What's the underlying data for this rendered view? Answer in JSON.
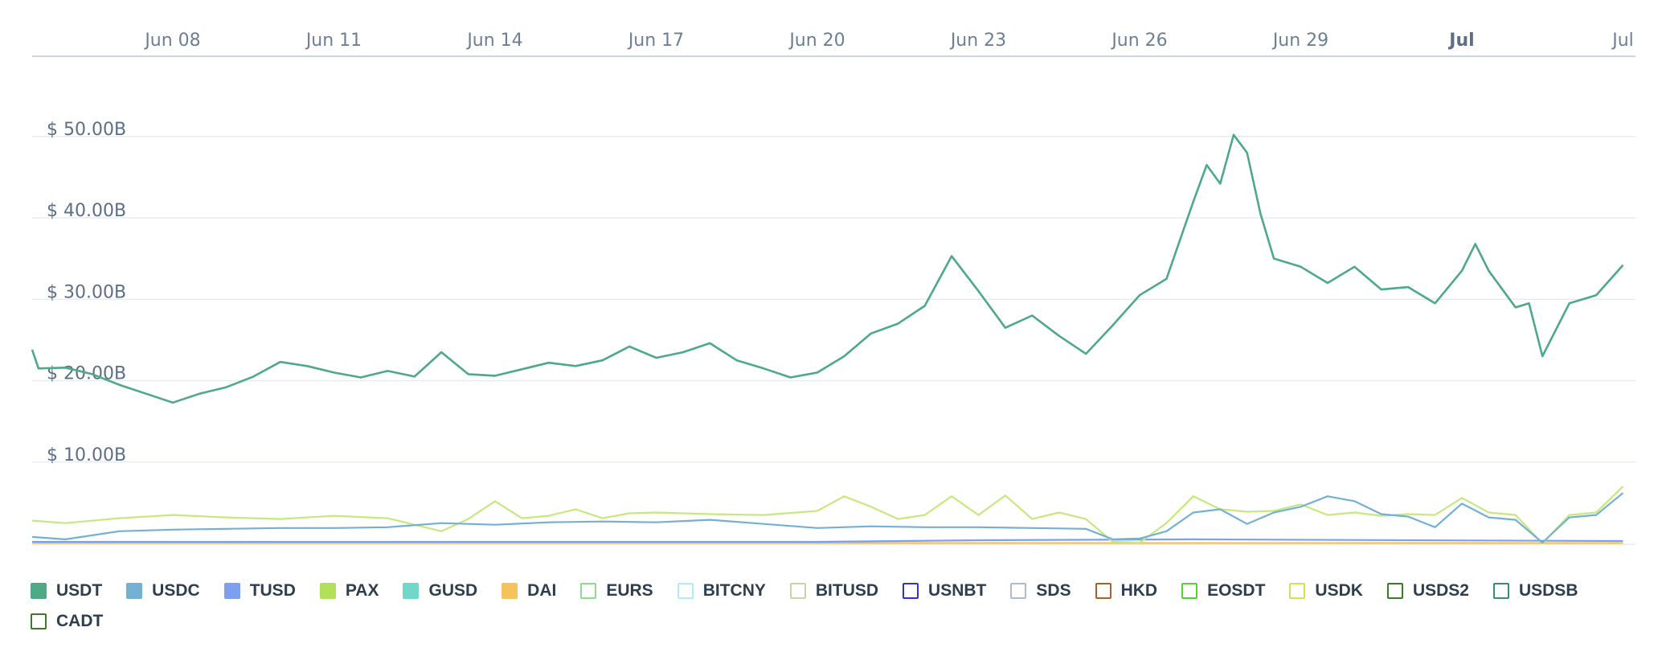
{
  "chart_data": {
    "type": "line",
    "title": "",
    "xlabel": "",
    "ylabel": "",
    "x_start": "2019-06-05",
    "x_end": "2019-07-05",
    "x_ticks": [
      {
        "label": "Jun 08",
        "date": "2019-06-08",
        "bold": false
      },
      {
        "label": "Jun 11",
        "date": "2019-06-11",
        "bold": false
      },
      {
        "label": "Jun 14",
        "date": "2019-06-14",
        "bold": false
      },
      {
        "label": "Jun 17",
        "date": "2019-06-17",
        "bold": false
      },
      {
        "label": "Jun 20",
        "date": "2019-06-20",
        "bold": false
      },
      {
        "label": "Jun 23",
        "date": "2019-06-23",
        "bold": false
      },
      {
        "label": "Jun 26",
        "date": "2019-06-26",
        "bold": false
      },
      {
        "label": "Jun 29",
        "date": "2019-06-29",
        "bold": false
      },
      {
        "label": "Jul",
        "date": "2019-07-02",
        "bold": true
      },
      {
        "label": "Jul",
        "date": "2019-07-05",
        "bold": false
      }
    ],
    "y_ticks": [
      {
        "label": "$ 10.00B",
        "value": 10
      },
      {
        "label": "$ 20.00B",
        "value": 20
      },
      {
        "label": "$ 30.00B",
        "value": 30
      },
      {
        "label": "$ 40.00B",
        "value": 40
      },
      {
        "label": "$ 50.00B",
        "value": 50
      }
    ],
    "ylim": [
      0,
      60
    ],
    "y_unit": "$ billions",
    "grid": true,
    "legend_position": "bottom",
    "series": [
      {
        "name": "USDT",
        "color": "#4ea987",
        "points": [
          [
            "2019-06-05",
            23.8
          ],
          [
            "2019-06-05T12:00",
            21.5
          ],
          [
            "2019-06-06",
            21.6
          ],
          [
            "2019-06-06T12:00",
            20.8
          ],
          [
            "2019-06-07",
            19.5
          ],
          [
            "2019-06-07T12:00",
            18.4
          ],
          [
            "2019-06-08",
            17.3
          ],
          [
            "2019-06-08T12:00",
            18.4
          ],
          [
            "2019-06-09",
            19.2
          ],
          [
            "2019-06-09T12:00",
            20.5
          ],
          [
            "2019-06-10",
            22.3
          ],
          [
            "2019-06-10T12:00",
            21.8
          ],
          [
            "2019-06-11",
            21.0
          ],
          [
            "2019-06-11T12:00",
            20.4
          ],
          [
            "2019-06-12",
            21.2
          ],
          [
            "2019-06-12T12:00",
            20.5
          ],
          [
            "2019-06-13",
            23.5
          ],
          [
            "2019-06-13T12:00",
            20.8
          ],
          [
            "2019-06-14",
            20.6
          ],
          [
            "2019-06-14T12:00",
            21.4
          ],
          [
            "2019-06-15",
            22.2
          ],
          [
            "2019-06-15T12:00",
            21.8
          ],
          [
            "2019-06-16",
            22.5
          ],
          [
            "2019-06-16T12:00",
            24.2
          ],
          [
            "2019-06-17",
            22.8
          ],
          [
            "2019-06-17T12:00",
            23.5
          ],
          [
            "2019-06-18",
            24.6
          ],
          [
            "2019-06-18T12:00",
            22.5
          ],
          [
            "2019-06-19",
            21.5
          ],
          [
            "2019-06-19T12:00",
            20.4
          ],
          [
            "2019-06-20",
            21.0
          ],
          [
            "2019-06-20T12:00",
            23.0
          ],
          [
            "2019-06-21",
            25.8
          ],
          [
            "2019-06-21T12:00",
            27.0
          ],
          [
            "2019-06-22",
            29.2
          ],
          [
            "2019-06-22T12:00",
            35.3
          ],
          [
            "2019-06-23",
            31.0
          ],
          [
            "2019-06-23T12:00",
            26.5
          ],
          [
            "2019-06-24",
            28.0
          ],
          [
            "2019-06-24T12:00",
            25.5
          ],
          [
            "2019-06-25",
            23.3
          ],
          [
            "2019-06-25T12:00",
            26.8
          ],
          [
            "2019-06-26",
            30.5
          ],
          [
            "2019-06-26T12:00",
            32.5
          ],
          [
            "2019-06-27",
            42.0
          ],
          [
            "2019-06-27T06:00",
            46.5
          ],
          [
            "2019-06-27T12:00",
            44.2
          ],
          [
            "2019-06-27T18:00",
            50.2
          ],
          [
            "2019-06-28",
            48.0
          ],
          [
            "2019-06-28T06:00",
            40.5
          ],
          [
            "2019-06-28T12:00",
            35.0
          ],
          [
            "2019-06-29",
            34.0
          ],
          [
            "2019-06-29T12:00",
            32.0
          ],
          [
            "2019-06-30",
            34.0
          ],
          [
            "2019-06-30T12:00",
            31.2
          ],
          [
            "2019-07-01",
            31.5
          ],
          [
            "2019-07-01T12:00",
            29.5
          ],
          [
            "2019-07-02",
            33.5
          ],
          [
            "2019-07-02T06:00",
            36.8
          ],
          [
            "2019-07-02T12:00",
            33.5
          ],
          [
            "2019-07-03",
            29.0
          ],
          [
            "2019-07-03T06:00",
            29.5
          ],
          [
            "2019-07-03T12:00",
            23.0
          ],
          [
            "2019-07-04",
            29.5
          ],
          [
            "2019-07-04T12:00",
            30.5
          ],
          [
            "2019-07-05",
            34.2
          ]
        ]
      },
      {
        "name": "USDC",
        "color": "#74b0d4",
        "points": [
          [
            "2019-06-05",
            0.8
          ],
          [
            "2019-06-06",
            0.5
          ],
          [
            "2019-06-07",
            1.5
          ],
          [
            "2019-06-08",
            1.7
          ],
          [
            "2019-06-09",
            1.8
          ],
          [
            "2019-06-10",
            1.9
          ],
          [
            "2019-06-11",
            1.9
          ],
          [
            "2019-06-12",
            2.0
          ],
          [
            "2019-06-13",
            2.5
          ],
          [
            "2019-06-14",
            2.3
          ],
          [
            "2019-06-15",
            2.6
          ],
          [
            "2019-06-16",
            2.7
          ],
          [
            "2019-06-17",
            2.6
          ],
          [
            "2019-06-18",
            2.9
          ],
          [
            "2019-06-19",
            2.4
          ],
          [
            "2019-06-20",
            1.9
          ],
          [
            "2019-06-21",
            2.1
          ],
          [
            "2019-06-22",
            2.0
          ],
          [
            "2019-06-23",
            2.0
          ],
          [
            "2019-06-24",
            1.9
          ],
          [
            "2019-06-25",
            1.8
          ],
          [
            "2019-06-25T12:00",
            0.5
          ],
          [
            "2019-06-26",
            0.6
          ],
          [
            "2019-06-26T12:00",
            1.5
          ],
          [
            "2019-06-27",
            3.8
          ],
          [
            "2019-06-27T12:00",
            4.2
          ],
          [
            "2019-06-28",
            2.4
          ],
          [
            "2019-06-28T12:00",
            3.8
          ],
          [
            "2019-06-29",
            4.5
          ],
          [
            "2019-06-29T12:00",
            5.8
          ],
          [
            "2019-06-30",
            5.2
          ],
          [
            "2019-06-30T12:00",
            3.6
          ],
          [
            "2019-07-01",
            3.3
          ],
          [
            "2019-07-01T12:00",
            2.0
          ],
          [
            "2019-07-02",
            4.9
          ],
          [
            "2019-07-02T12:00",
            3.2
          ],
          [
            "2019-07-03",
            2.9
          ],
          [
            "2019-07-03T12:00",
            0.1
          ],
          [
            "2019-07-04",
            3.2
          ],
          [
            "2019-07-04T12:00",
            3.5
          ],
          [
            "2019-07-05",
            6.2
          ]
        ]
      },
      {
        "name": "PAX",
        "color": "#c7e87e",
        "points": [
          [
            "2019-06-05",
            2.8
          ],
          [
            "2019-06-06",
            2.5
          ],
          [
            "2019-06-07",
            3.1
          ],
          [
            "2019-06-08",
            3.5
          ],
          [
            "2019-06-09",
            3.2
          ],
          [
            "2019-06-10",
            3.0
          ],
          [
            "2019-06-11",
            3.4
          ],
          [
            "2019-06-12",
            3.1
          ],
          [
            "2019-06-13",
            1.5
          ],
          [
            "2019-06-13T12:00",
            3.0
          ],
          [
            "2019-06-14",
            5.2
          ],
          [
            "2019-06-14T12:00",
            3.1
          ],
          [
            "2019-06-15",
            3.4
          ],
          [
            "2019-06-15T12:00",
            4.2
          ],
          [
            "2019-06-16",
            3.1
          ],
          [
            "2019-06-16T12:00",
            3.7
          ],
          [
            "2019-06-17",
            3.8
          ],
          [
            "2019-06-18",
            3.6
          ],
          [
            "2019-06-19",
            3.5
          ],
          [
            "2019-06-20",
            4.0
          ],
          [
            "2019-06-20T12:00",
            5.8
          ],
          [
            "2019-06-21",
            4.5
          ],
          [
            "2019-06-21T12:00",
            3.0
          ],
          [
            "2019-06-22",
            3.5
          ],
          [
            "2019-06-22T12:00",
            5.8
          ],
          [
            "2019-06-23",
            3.5
          ],
          [
            "2019-06-23T12:00",
            5.9
          ],
          [
            "2019-06-24",
            3.0
          ],
          [
            "2019-06-24T12:00",
            3.8
          ],
          [
            "2019-06-25",
            3.0
          ],
          [
            "2019-06-25T12:00",
            0.2
          ],
          [
            "2019-06-26",
            0.1
          ],
          [
            "2019-06-26T12:00",
            2.5
          ],
          [
            "2019-06-27",
            5.8
          ],
          [
            "2019-06-27T12:00",
            4.2
          ],
          [
            "2019-06-28",
            3.9
          ],
          [
            "2019-06-28T12:00",
            4.0
          ],
          [
            "2019-06-29",
            4.8
          ],
          [
            "2019-06-29T12:00",
            3.5
          ],
          [
            "2019-06-30",
            3.8
          ],
          [
            "2019-06-30T12:00",
            3.4
          ],
          [
            "2019-07-01",
            3.6
          ],
          [
            "2019-07-01T12:00",
            3.5
          ],
          [
            "2019-07-02",
            5.6
          ],
          [
            "2019-07-02T12:00",
            3.8
          ],
          [
            "2019-07-03",
            3.5
          ],
          [
            "2019-07-03T12:00",
            0.0
          ],
          [
            "2019-07-04",
            3.5
          ],
          [
            "2019-07-04T12:00",
            3.8
          ],
          [
            "2019-07-05",
            7.0
          ]
        ]
      },
      {
        "name": "TUSD",
        "color": "#7ba0f0",
        "points": [
          [
            "2019-06-05",
            0.2
          ],
          [
            "2019-06-20",
            0.2
          ],
          [
            "2019-06-23",
            0.4
          ],
          [
            "2019-06-27",
            0.5
          ],
          [
            "2019-07-05",
            0.3
          ]
        ]
      },
      {
        "name": "DAI",
        "color": "#f6c25d",
        "points": [
          [
            "2019-06-05",
            0.05
          ],
          [
            "2019-07-05",
            0.05
          ]
        ]
      }
    ],
    "legend": [
      {
        "name": "USDT",
        "color": "#4ea987",
        "filled": true
      },
      {
        "name": "USDC",
        "color": "#74b0d4",
        "filled": true
      },
      {
        "name": "TUSD",
        "color": "#7ba0f0",
        "filled": true
      },
      {
        "name": "PAX",
        "color": "#b3e05a",
        "filled": true
      },
      {
        "name": "GUSD",
        "color": "#6fd8c8",
        "filled": true
      },
      {
        "name": "DAI",
        "color": "#f6c25d",
        "filled": true
      },
      {
        "name": "EURS",
        "color": "#8fdc8a",
        "filled": false
      },
      {
        "name": "BITCNY",
        "color": "#b3ecf2",
        "filled": false
      },
      {
        "name": "BITUSD",
        "color": "#c9d3a8",
        "filled": false
      },
      {
        "name": "USNBT",
        "color": "#2f33d6",
        "filled": false
      },
      {
        "name": "SDS",
        "color": "#a9bdd6",
        "filled": false
      },
      {
        "name": "HKD",
        "color": "#a4632e",
        "filled": false
      },
      {
        "name": "EOSDT",
        "color": "#5bcf3a",
        "filled": false
      },
      {
        "name": "USDK",
        "color": "#cce35a",
        "filled": false
      },
      {
        "name": "USDS2",
        "color": "#3d7a2a",
        "filled": false
      },
      {
        "name": "USDSB",
        "color": "#3e8a6e",
        "filled": false
      },
      {
        "name": "CADT",
        "color": "#3d7a2a",
        "filled": false
      }
    ]
  }
}
